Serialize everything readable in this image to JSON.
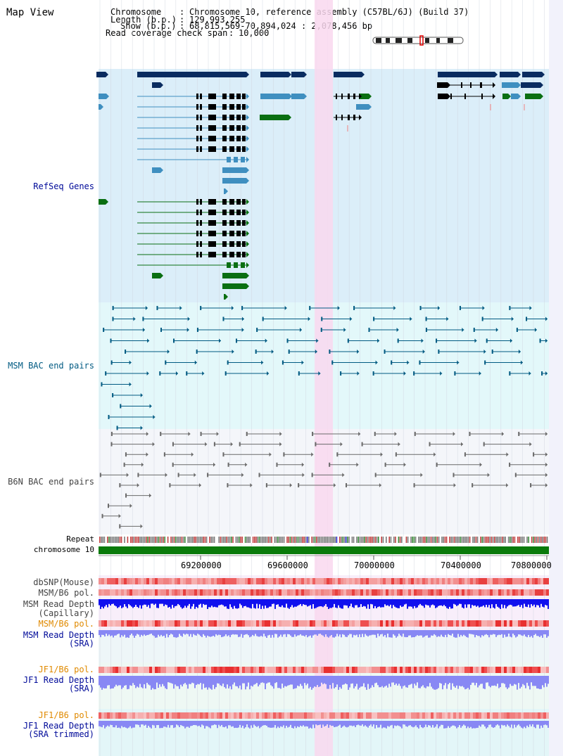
{
  "title": "Map View",
  "header": {
    "chromosome_key": "Chromosome",
    "chromosome_val": "Chromosome 10, reference assembly (C57BL/6J) (Build 37)",
    "length_key": "Length (b.p.)",
    "length_val": "129,993,255",
    "show_key": "Show (b.p.)",
    "show_val": "68,815,569-70,894,024 : 2,078,456 bp",
    "coverage_key": "Read coverage check span",
    "coverage_val": "10,000"
  },
  "tracks": {
    "refseq": "RefSeq Genes",
    "msm_bac": "MSM BAC end pairs",
    "b6n_bac": "B6N BAC end pairs",
    "repeat": "Repeat",
    "chromosome": "chromosome 10",
    "dbsnp": "dbSNP(Mouse)",
    "msm_b6_pol_1": "MSM/B6 pol.",
    "msm_read_depth_cap_1": "MSM Read Depth",
    "msm_read_depth_cap_2": "(Capillary)",
    "msm_b6_pol_2": "MSM/B6 pol.",
    "msm_read_depth_sra_1": "MSM Read Depth",
    "msm_read_depth_sra_2": "(SRA)",
    "jf1_b6_pol_1": "JF1/B6 pol.",
    "jf1_read_depth_sra_1": "JF1 Read Depth",
    "jf1_read_depth_sra_2": "(SRA)",
    "jf1_b6_pol_2": "JF1/B6 pol.",
    "jf1_read_depth_trim_1": "JF1 Read Depth",
    "jf1_read_depth_trim_2": "(SRA trimmed)"
  },
  "axis": {
    "ticks": [
      "69200000",
      "69600000",
      "70000000",
      "70400000",
      "70800000"
    ]
  },
  "colors": {
    "refseq_bg": "#dbeef9",
    "msm_bg": "#e3f8fa",
    "b6n_bg": "#f4f6fa",
    "highlight": "#f9d8ef",
    "gene_dark": "#0a2c60",
    "gene_mid": "#3f8fc0",
    "gene_green": "#0a6f12",
    "bac_msm": "#005a82",
    "bac_b6n": "#6a6a6a",
    "snp_red": "#ee4444",
    "depth_blue": "#1111ee",
    "depth_light": "#8888f4",
    "label_navy": "#000a99",
    "label_orange": "#e08a00",
    "label_gray": "#444444"
  }
}
